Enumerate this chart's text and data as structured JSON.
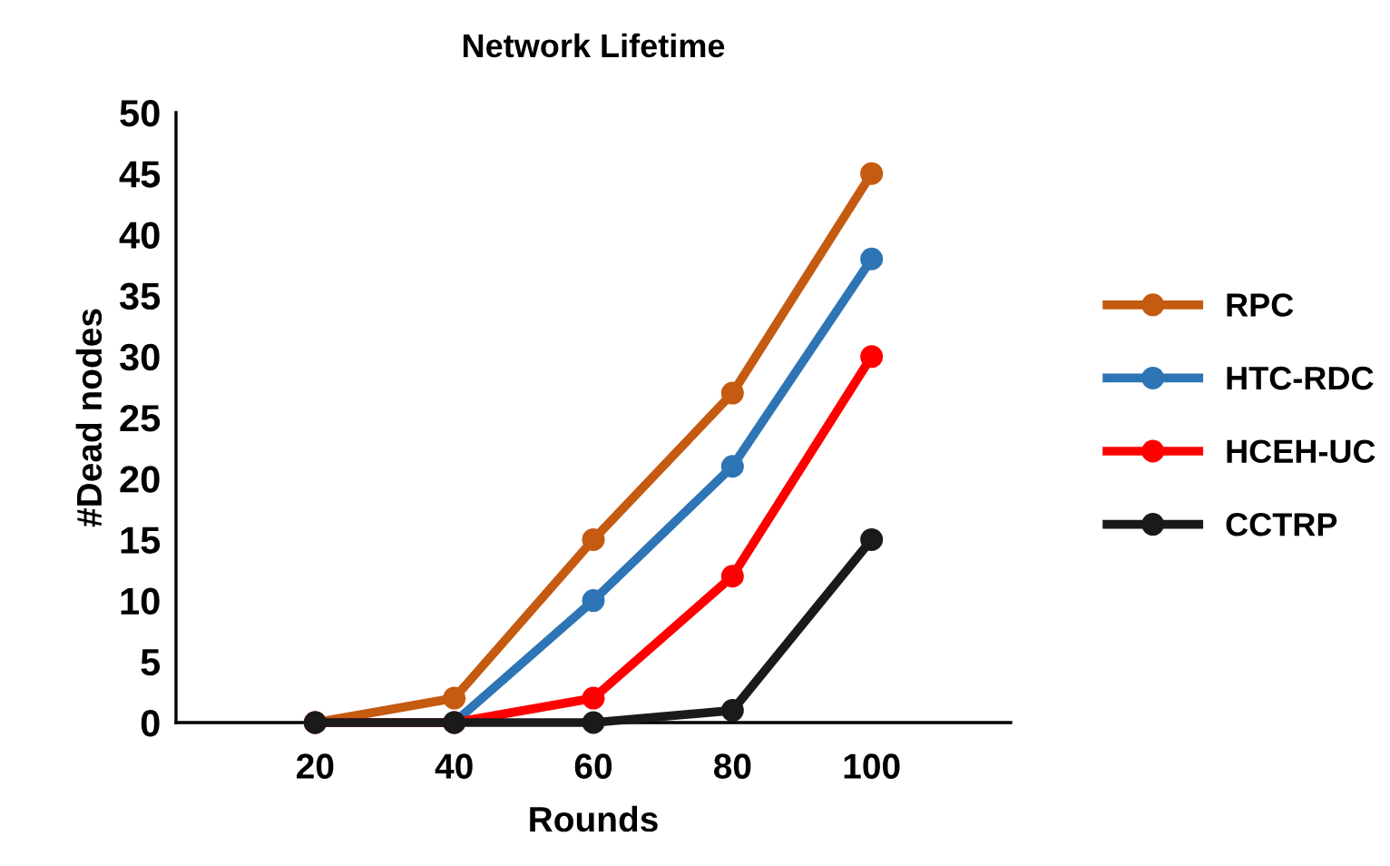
{
  "chart_data": {
    "type": "line",
    "title": "Network Lifetime",
    "xlabel": "Rounds",
    "ylabel": "#Dead nodes",
    "x": [
      20,
      40,
      60,
      80,
      100
    ],
    "series": [
      {
        "name": "RPC",
        "color": "#c55a11",
        "values": [
          0,
          2,
          15,
          27,
          45
        ]
      },
      {
        "name": "HTC-RDC",
        "color": "#2e75b6",
        "values": [
          0,
          0,
          10,
          21,
          38
        ]
      },
      {
        "name": "HCEH-UC",
        "color": "#ff0000",
        "values": [
          0,
          0,
          2,
          12,
          30
        ]
      },
      {
        "name": "CCTRP",
        "color": "#1a1a1a",
        "values": [
          0,
          0,
          0,
          1,
          15
        ]
      }
    ],
    "xlim": [
      0,
      120
    ],
    "xticks": [
      20,
      40,
      60,
      80,
      100
    ],
    "ylim": [
      0,
      50
    ],
    "yticks": [
      0,
      5,
      10,
      15,
      20,
      25,
      30,
      35,
      40,
      45,
      50
    ],
    "grid": false,
    "legend": "right",
    "marker": "circle",
    "line_style": "solid"
  }
}
